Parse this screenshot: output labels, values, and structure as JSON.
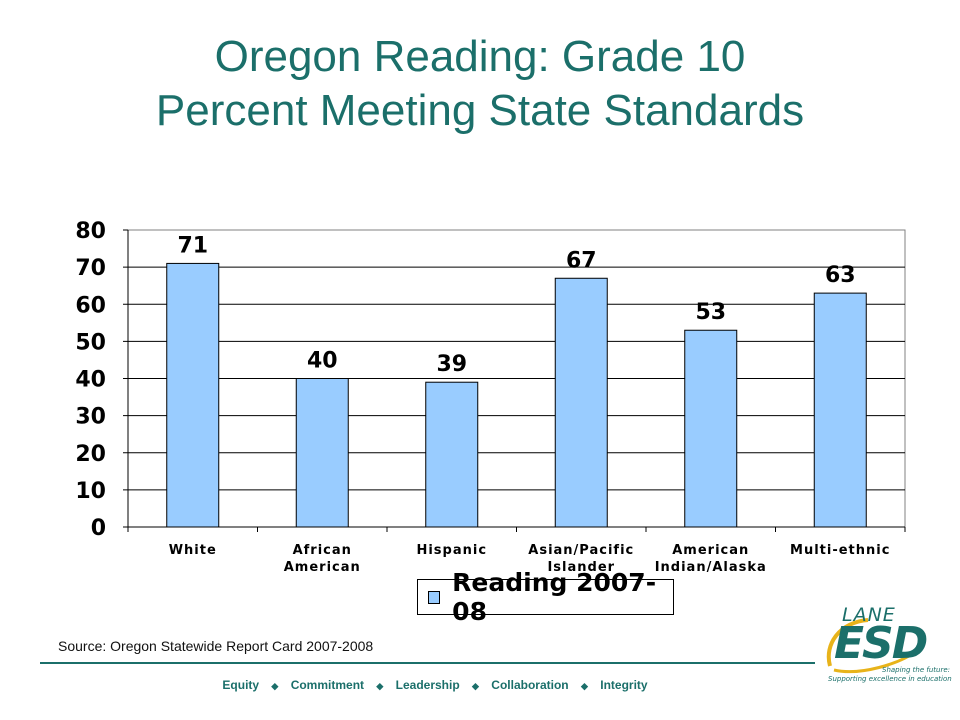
{
  "title": {
    "line1": "Oregon Reading: Grade 10",
    "line2": "Percent Meeting State Standards"
  },
  "chart_data": {
    "type": "bar",
    "categories": [
      [
        "White"
      ],
      [
        "African",
        "American"
      ],
      [
        "Hispanic"
      ],
      [
        "Asian/Pacific",
        "Islander"
      ],
      [
        "American",
        "Indian/Alaska"
      ],
      [
        "Multi-ethnic"
      ]
    ],
    "series": [
      {
        "name": "Reading 2007-08",
        "values": [
          71,
          40,
          39,
          67,
          53,
          63
        ],
        "color": "#99ccff"
      }
    ],
    "title": "",
    "xlabel": "",
    "ylabel": "",
    "ylim": [
      0,
      80
    ],
    "yticks": [
      "0",
      "10",
      "20",
      "30",
      "40",
      "50",
      "60",
      "70",
      "80"
    ],
    "grid": true,
    "data_labels": true,
    "legend": "bottom"
  },
  "legend": {
    "label": "Reading 2007-08",
    "color": "#99ccff"
  },
  "source": "Source: Oregon Statewide Report Card 2007-2008",
  "footer": {
    "items": [
      "Equity",
      "Commitment",
      "Leadership",
      "Collaboration",
      "Integrity"
    ],
    "separator": "◆"
  },
  "logo": {
    "lane": "LANE",
    "esd": "ESD",
    "tagline1": "Shaping the future:",
    "tagline2": "Supporting excellence in education"
  },
  "colors": {
    "accent": "#1b6f6a",
    "bar": "#99ccff",
    "logo_swirl": "#e8b31a"
  }
}
